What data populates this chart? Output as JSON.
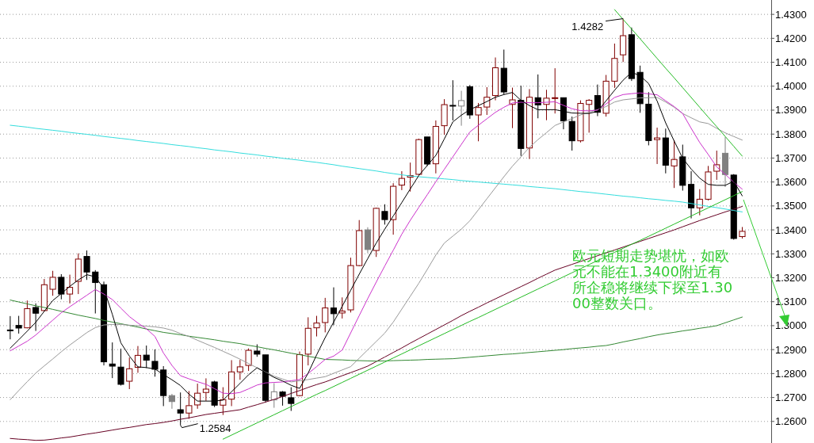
{
  "chart_data": {
    "type": "candlestick",
    "categories": [
      null,
      null,
      null,
      null,
      null,
      null,
      null,
      null,
      null,
      null,
      null,
      null,
      null,
      null,
      null,
      null,
      null,
      null,
      null,
      null,
      null,
      null,
      null,
      null,
      null,
      null,
      null,
      null,
      null,
      null,
      null,
      null,
      null,
      null,
      null,
      null,
      null,
      null,
      null,
      null,
      null,
      null,
      null,
      null,
      null,
      null,
      null,
      null,
      null,
      null,
      null,
      null,
      null,
      null,
      null,
      null,
      null,
      null,
      null,
      null,
      null,
      null,
      null,
      null,
      null,
      null,
      null,
      null,
      null,
      null,
      null,
      null,
      null,
      null,
      null,
      null,
      null,
      null,
      null,
      null,
      null,
      null,
      null,
      null,
      null,
      null,
      null
    ],
    "ohlc": [
      [
        1.2982,
        1.304,
        1.2943,
        1.2982
      ],
      [
        1.3001,
        1.3041,
        1.2967,
        1.299
      ],
      [
        1.2991,
        1.3105,
        1.2989,
        1.3071
      ],
      [
        1.3076,
        1.3093,
        1.2978,
        1.3052
      ],
      [
        1.3063,
        1.3195,
        1.306,
        1.3171
      ],
      [
        1.3152,
        1.3229,
        1.3125,
        1.3202
      ],
      [
        1.3202,
        1.3215,
        1.311,
        1.3132
      ],
      [
        1.3132,
        1.3213,
        1.3093,
        1.316
      ],
      [
        1.3185,
        1.3302,
        1.3132,
        1.3278
      ],
      [
        1.3289,
        1.3314,
        1.3191,
        1.3224
      ],
      [
        1.3224,
        1.3232,
        1.3051,
        1.318
      ],
      [
        1.3171,
        1.3184,
        1.2834,
        1.2849
      ],
      [
        1.284,
        1.293,
        1.2781,
        1.2831
      ],
      [
        1.2827,
        1.2904,
        1.275,
        1.2755
      ],
      [
        1.2768,
        1.2867,
        1.2735,
        1.282
      ],
      [
        1.2826,
        1.2915,
        1.2803,
        1.2876
      ],
      [
        1.2877,
        1.2917,
        1.2823,
        1.2856
      ],
      [
        1.2851,
        1.2901,
        1.2787,
        1.2818
      ],
      [
        1.2815,
        1.2831,
        1.2664,
        1.2708
      ],
      [
        1.2708,
        1.2715,
        1.2653,
        1.2683
      ],
      [
        1.2649,
        1.2721,
        1.2584,
        1.2635
      ],
      [
        1.2635,
        1.2727,
        1.2611,
        1.2666
      ],
      [
        1.2669,
        1.2758,
        1.2653,
        1.2718
      ],
      [
        1.2721,
        1.278,
        1.2686,
        1.2735
      ],
      [
        1.2765,
        1.277,
        1.266,
        1.2668
      ],
      [
        1.2668,
        1.2743,
        1.2627,
        1.2691
      ],
      [
        1.2693,
        1.2856,
        1.2664,
        1.2807
      ],
      [
        1.2807,
        1.2857,
        1.2774,
        1.2828
      ],
      [
        1.2834,
        1.2905,
        1.2811,
        1.2897
      ],
      [
        1.2894,
        1.2922,
        1.287,
        1.2881
      ],
      [
        1.2878,
        1.2878,
        1.2679,
        1.2688
      ],
      [
        1.269,
        1.276,
        1.2657,
        1.2724
      ],
      [
        1.2723,
        1.2727,
        1.2666,
        1.2705
      ],
      [
        1.2699,
        1.2743,
        1.2644,
        1.2675
      ],
      [
        1.2708,
        1.2892,
        1.2705,
        1.2879
      ],
      [
        1.2881,
        1.3035,
        1.2834,
        1.2989
      ],
      [
        1.2991,
        1.3041,
        1.2955,
        1.3011
      ],
      [
        1.3013,
        1.3116,
        1.2972,
        1.3074
      ],
      [
        1.3074,
        1.316,
        1.3002,
        1.305
      ],
      [
        1.3053,
        1.3118,
        1.303,
        1.3061
      ],
      [
        1.3066,
        1.3284,
        1.3055,
        1.3251
      ],
      [
        1.3251,
        1.3441,
        1.3248,
        1.3397
      ],
      [
        1.34,
        1.3411,
        1.3303,
        1.3318
      ],
      [
        1.3314,
        1.3493,
        1.3287,
        1.349
      ],
      [
        1.3477,
        1.3507,
        1.3422,
        1.3443
      ],
      [
        1.3443,
        1.3595,
        1.338,
        1.3582
      ],
      [
        1.3587,
        1.3645,
        1.3566,
        1.3615
      ],
      [
        1.362,
        1.3681,
        1.356,
        1.3627
      ],
      [
        1.3632,
        1.3781,
        1.3628,
        1.3777
      ],
      [
        1.3788,
        1.3788,
        1.3667,
        1.3675
      ],
      [
        1.3676,
        1.3857,
        1.3636,
        1.3832
      ],
      [
        1.3835,
        1.3946,
        1.3797,
        1.3923
      ],
      [
        1.392,
        1.4025,
        1.3857,
        1.392
      ],
      [
        1.3917,
        1.3981,
        1.3835,
        1.394
      ],
      [
        1.3998,
        1.4005,
        1.3864,
        1.388
      ],
      [
        1.388,
        1.393,
        1.377,
        1.3911
      ],
      [
        1.3913,
        1.3996,
        1.388,
        1.3954
      ],
      [
        1.3961,
        1.412,
        1.3941,
        1.4077
      ],
      [
        1.4075,
        1.4153,
        1.3965,
        1.3976
      ],
      [
        1.3924,
        1.3994,
        1.3825,
        1.3943
      ],
      [
        1.3941,
        1.4002,
        1.3709,
        1.374
      ],
      [
        1.3742,
        1.3988,
        1.3696,
        1.3954
      ],
      [
        1.3952,
        1.4049,
        1.3866,
        1.3922
      ],
      [
        1.3924,
        1.3985,
        1.3858,
        1.395
      ],
      [
        1.3952,
        1.4075,
        1.3886,
        1.3952
      ],
      [
        1.3952,
        1.3952,
        1.382,
        1.3855
      ],
      [
        1.3853,
        1.3873,
        1.3731,
        1.3772
      ],
      [
        1.3772,
        1.3941,
        1.3765,
        1.3928
      ],
      [
        1.3924,
        1.3946,
        1.3806,
        1.3941
      ],
      [
        1.3961,
        1.4007,
        1.3875,
        1.3891
      ],
      [
        1.3887,
        1.4047,
        1.3873,
        1.4021
      ],
      [
        1.4021,
        1.4178,
        1.3993,
        1.4116
      ],
      [
        1.4131,
        1.4282,
        1.4101,
        1.4211
      ],
      [
        1.4215,
        1.4245,
        1.4022,
        1.4032
      ],
      [
        1.4058,
        1.4086,
        1.3889,
        1.3927
      ],
      [
        1.3925,
        1.3975,
        1.3753,
        1.3773
      ],
      [
        1.3777,
        1.3827,
        1.3675,
        1.3784
      ],
      [
        1.3784,
        1.3823,
        1.3636,
        1.367
      ],
      [
        1.3667,
        1.3775,
        1.3575,
        1.3694
      ],
      [
        1.3705,
        1.3756,
        1.3564,
        1.3586
      ],
      [
        1.359,
        1.3645,
        1.3448,
        1.3492
      ],
      [
        1.3492,
        1.357,
        1.3461,
        1.3528
      ],
      [
        1.3528,
        1.3667,
        1.3523,
        1.3642
      ],
      [
        1.3645,
        1.3731,
        1.3609,
        1.3672
      ],
      [
        1.372,
        1.3788,
        1.3579,
        1.3631
      ],
      [
        1.3629,
        1.3633,
        1.3359,
        1.3364
      ],
      [
        1.3372,
        1.3412,
        1.3364,
        1.3394
      ]
    ],
    "colors": [
      "#000000",
      "#000000",
      "#800000",
      "#000000",
      "#800000",
      "#800000",
      "#000000",
      "#800000",
      "#800000",
      "#000000",
      "#000000",
      "#000000",
      "#000000",
      "#000000",
      "#800000",
      "#800000",
      "#000000",
      "#000000",
      "#000000",
      "#808080",
      "#000000",
      "#800000",
      "#800000",
      "#800000",
      "#000000",
      "#800000",
      "#800000",
      "#800000",
      "#800000",
      "#000000",
      "#000000",
      "#808080",
      "#000000",
      "#000000",
      "#800000",
      "#800000",
      "#800000",
      "#800000",
      "#000000",
      "#800000",
      "#800000",
      "#800000",
      "#808080",
      "#800000",
      "#000000",
      "#800000",
      "#800000",
      "#800000",
      "#800000",
      "#000000",
      "#800000",
      "#800000",
      "#000000",
      "#808080",
      "#000000",
      "#800000",
      "#800000",
      "#800000",
      "#000000",
      "#800000",
      "#000000",
      "#800000",
      "#000000",
      "#800000",
      "#800000",
      "#000000",
      "#000000",
      "#800000",
      "#800000",
      "#000000",
      "#800000",
      "#800000",
      "#800000",
      "#000000",
      "#000000",
      "#000000",
      "#800000",
      "#000000",
      "#800000",
      "#000000",
      "#000000",
      "#800000",
      "#800000",
      "#800000",
      "#808080",
      "#000000",
      "#800000"
    ],
    "series": [
      {
        "type": "line",
        "color": "#660022",
        "values": [
          1.2529,
          1.2526,
          1.2524,
          1.2521,
          1.2522,
          1.2526,
          1.2531,
          1.2535,
          1.2541,
          1.2547,
          1.2552,
          1.2558,
          1.2564,
          1.257,
          1.2575,
          1.2581,
          1.2587,
          1.2591,
          1.2596,
          1.2602,
          1.2609,
          1.2615,
          1.2622,
          1.2629,
          1.2634,
          1.2639,
          1.2644,
          1.2649,
          1.266,
          1.267,
          1.2681,
          1.2692,
          1.2704,
          1.2717,
          1.2729,
          1.2742,
          1.2754,
          1.2765,
          1.2778,
          1.2791,
          1.2804,
          1.2817,
          1.2831,
          1.285,
          1.2869,
          1.2888,
          1.2907,
          1.2927,
          1.2946,
          1.2965,
          1.2984,
          1.3003,
          1.3022,
          1.3042,
          1.306,
          1.3077,
          1.3095,
          1.3112,
          1.3129,
          1.3146,
          1.3163,
          1.318,
          1.3198,
          1.3215,
          1.3232,
          1.3244,
          1.3256,
          1.3268,
          1.328,
          1.3292,
          1.3304,
          1.3316,
          1.3328,
          1.334,
          1.3352,
          1.3364,
          1.3376,
          1.3388,
          1.34,
          1.3413,
          1.3426,
          1.3439,
          1.3451,
          1.3463,
          1.3475,
          1.3486,
          1.3498
        ]
      },
      {
        "type": "line",
        "color": "#338833",
        "values": [
          1.3107,
          1.3099,
          1.3091,
          1.3083,
          1.3076,
          1.3068,
          1.306,
          1.3052,
          1.3044,
          1.3037,
          1.303,
          1.3022,
          1.3015,
          1.3008,
          1.3001,
          1.2994,
          1.2986,
          1.2979,
          1.2972,
          1.2967,
          1.2962,
          1.2956,
          1.2951,
          1.2946,
          1.2941,
          1.2935,
          1.293,
          1.2925,
          1.2918,
          1.2912,
          1.2905,
          1.2899,
          1.2892,
          1.2885,
          1.2879,
          1.2872,
          1.2866,
          1.2859,
          1.2858,
          1.2857,
          1.2855,
          1.2854,
          1.2853,
          1.2852,
          1.2853,
          1.2854,
          1.2855,
          1.2856,
          1.2857,
          1.2859,
          1.286,
          1.2861,
          1.2862,
          1.2865,
          1.2868,
          1.2871,
          1.2874,
          1.2877,
          1.288,
          1.2882,
          1.2885,
          1.2888,
          1.2891,
          1.2894,
          1.2897,
          1.29,
          1.2904,
          1.2907,
          1.291,
          1.2914,
          1.2917,
          1.2924,
          1.2932,
          1.2939,
          1.2946,
          1.2954,
          1.2961,
          1.2967,
          1.2972,
          1.2978,
          1.2983,
          1.2989,
          1.2994,
          1.3,
          1.3012,
          1.3024,
          1.3036
        ]
      },
      {
        "type": "line",
        "color": "#33dddd",
        "values": [
          1.3837,
          1.3833,
          1.3829,
          1.3824,
          1.382,
          1.3816,
          1.3812,
          1.3807,
          1.3803,
          1.3799,
          1.3795,
          1.379,
          1.3786,
          1.3782,
          1.3778,
          1.3773,
          1.3769,
          1.3765,
          1.3761,
          1.3756,
          1.3752,
          1.3748,
          1.3743,
          1.3739,
          1.3734,
          1.373,
          1.3726,
          1.3721,
          1.3717,
          1.3713,
          1.3708,
          1.3704,
          1.3699,
          1.3695,
          1.3691,
          1.3686,
          1.3682,
          1.3677,
          1.3672,
          1.3666,
          1.3661,
          1.3656,
          1.3651,
          1.3646,
          1.364,
          1.3635,
          1.363,
          1.3625,
          1.3622,
          1.3619,
          1.3616,
          1.3613,
          1.361,
          1.3606,
          1.3603,
          1.36,
          1.3597,
          1.3594,
          1.3591,
          1.3588,
          1.3585,
          1.3581,
          1.3578,
          1.3575,
          1.3572,
          1.3568,
          1.3564,
          1.356,
          1.3557,
          1.3553,
          1.3549,
          1.3545,
          1.3541,
          1.3538,
          1.3534,
          1.353,
          1.3527,
          1.3523,
          1.352,
          1.3516,
          1.351,
          1.3504,
          1.3498,
          1.3493,
          1.3487,
          1.3481,
          1.3475
        ]
      },
      {
        "type": "line",
        "color": "#999999",
        "values": [
          1.2691,
          1.2729,
          1.2766,
          1.2802,
          1.2832,
          1.2861,
          1.2891,
          1.2919,
          1.2945,
          1.2971,
          1.2992,
          1.3003,
          1.3005,
          1.3005,
          1.3002,
          1.3,
          1.2998,
          1.2995,
          1.299,
          1.2981,
          1.2967,
          1.2955,
          1.2939,
          1.2924,
          1.2909,
          1.2893,
          1.2877,
          1.286,
          1.2842,
          1.2824,
          1.2806,
          1.2789,
          1.2777,
          1.2765,
          1.277,
          1.2775,
          1.2781,
          1.2787,
          1.2801,
          1.2815,
          1.2829,
          1.2864,
          1.2899,
          1.2934,
          1.2969,
          1.3015,
          1.3069,
          1.3123,
          1.3177,
          1.3235,
          1.3295,
          1.3345,
          1.3374,
          1.3403,
          1.3438,
          1.3484,
          1.353,
          1.3576,
          1.3622,
          1.3666,
          1.3705,
          1.3745,
          1.3777,
          1.3806,
          1.3836,
          1.3851,
          1.3865,
          1.388,
          1.3891,
          1.3902,
          1.3915,
          1.3934,
          1.3943,
          1.3947,
          1.3951,
          1.3952,
          1.3953,
          1.3934,
          1.3912,
          1.3886,
          1.3868,
          1.3851,
          1.3844,
          1.3824,
          1.3805,
          1.379,
          1.3775
        ]
      },
      {
        "type": "line",
        "color": "#cc33cc",
        "values": [
          1.2895,
          1.2915,
          1.2935,
          1.2961,
          1.2992,
          1.3023,
          1.3054,
          1.3079,
          1.3103,
          1.3127,
          1.3151,
          1.3132,
          1.3109,
          1.3073,
          1.3038,
          1.3011,
          1.2987,
          1.2955,
          1.2886,
          1.2834,
          1.2791,
          1.2778,
          1.2766,
          1.2755,
          1.2737,
          1.2718,
          1.2716,
          1.2721,
          1.2736,
          1.2752,
          1.2761,
          1.2763,
          1.2765,
          1.277,
          1.2775,
          1.28,
          1.2829,
          1.2859,
          1.2873,
          1.2898,
          1.297,
          1.3042,
          1.3113,
          1.3182,
          1.3249,
          1.3315,
          1.3382,
          1.344,
          1.3494,
          1.3547,
          1.3601,
          1.3653,
          1.3705,
          1.3757,
          1.3809,
          1.3837,
          1.3864,
          1.3891,
          1.3912,
          1.393,
          1.3933,
          1.3931,
          1.3931,
          1.3933,
          1.3935,
          1.392,
          1.3906,
          1.3898,
          1.3897,
          1.39,
          1.3926,
          1.3953,
          1.3965,
          1.3969,
          1.3972,
          1.3968,
          1.3964,
          1.3939,
          1.3915,
          1.3886,
          1.3824,
          1.3765,
          1.3715,
          1.3663,
          1.3632,
          1.3599,
          1.357
        ]
      },
      {
        "type": "line",
        "color": "#000000",
        "values": [
          1.2906,
          1.2941,
          1.2977,
          1.3014,
          1.306,
          1.3105,
          1.3134,
          1.3164,
          1.3191,
          1.3213,
          1.3204,
          1.3155,
          1.3047,
          1.2928,
          1.2873,
          1.2828,
          1.2825,
          1.2819,
          1.2796,
          1.2774,
          1.275,
          1.2714,
          1.2685,
          1.2685,
          1.2685,
          1.2689,
          1.2724,
          1.2759,
          1.2795,
          1.2824,
          1.2804,
          1.2784,
          1.2769,
          1.2751,
          1.2738,
          1.2802,
          1.2878,
          1.295,
          1.3015,
          1.3081,
          1.3148,
          1.3215,
          1.328,
          1.3345,
          1.3403,
          1.3458,
          1.3514,
          1.3571,
          1.3627,
          1.3669,
          1.3711,
          1.378,
          1.3851,
          1.3879,
          1.3902,
          1.3919,
          1.3936,
          1.3954,
          1.3965,
          1.3974,
          1.3941,
          1.3919,
          1.3902,
          1.3902,
          1.3902,
          1.3895,
          1.3888,
          1.3887,
          1.3886,
          1.3895,
          1.3939,
          1.3983,
          1.4025,
          1.4058,
          1.4044,
          1.4011,
          1.3938,
          1.3847,
          1.3771,
          1.3699,
          1.3654,
          1.3616,
          1.359,
          1.3586,
          1.3586,
          1.3603,
          1.3542
        ]
      },
      {
        "type": "line",
        "color": "#22bb22",
        "values": [
          null,
          null,
          null,
          null,
          null,
          null,
          null,
          null,
          null,
          null,
          null,
          null,
          null,
          null,
          null,
          null,
          null,
          null,
          null,
          null,
          null,
          null,
          null,
          null,
          null,
          1.2526,
          1.2543,
          1.256,
          1.2577,
          1.2594,
          1.2611,
          1.2628,
          1.2645,
          1.2662,
          1.2679,
          1.2696,
          1.2713,
          1.2729,
          1.2746,
          1.2763,
          1.278,
          1.2797,
          1.2814,
          1.2831,
          1.2848,
          1.2865,
          1.2882,
          1.2899,
          1.2916,
          1.2933,
          1.295,
          1.2967,
          1.2984,
          1.3001,
          1.3018,
          1.3034,
          1.3051,
          1.3068,
          1.3085,
          1.3102,
          1.3119,
          1.3136,
          1.3153,
          1.317,
          1.3187,
          1.3204,
          1.3221,
          1.3238,
          1.3255,
          1.3272,
          1.3289,
          1.3306,
          1.3323,
          1.334,
          1.3356,
          1.3373,
          1.339,
          1.3407,
          1.3424,
          1.3441,
          1.3458,
          1.3475,
          1.3492,
          1.3509,
          1.3526,
          1.3543,
          1.356
        ]
      },
      {
        "type": "line",
        "color": "#22bb22",
        "values": [
          null,
          null,
          null,
          null,
          null,
          null,
          null,
          null,
          null,
          null,
          null,
          null,
          null,
          null,
          null,
          null,
          null,
          null,
          null,
          null,
          null,
          null,
          null,
          null,
          null,
          null,
          null,
          null,
          null,
          null,
          null,
          null,
          null,
          null,
          null,
          null,
          null,
          null,
          null,
          null,
          null,
          null,
          null,
          null,
          null,
          null,
          null,
          null,
          null,
          null,
          null,
          null,
          null,
          null,
          null,
          null,
          null,
          null,
          null,
          null,
          null,
          null,
          null,
          null,
          null,
          null,
          null,
          null,
          null,
          null,
          null,
          1.432,
          1.4279,
          1.4239,
          1.4198,
          1.4157,
          1.4116,
          1.4075,
          1.4035,
          1.3994,
          1.3953,
          1.3912,
          1.3871,
          1.3831,
          1.379,
          1.3749,
          1.3708
        ]
      }
    ],
    "ylim": [
      1.251,
      1.436
    ],
    "yticks": [
      {
        "value": 1.26,
        "label": "1.2600"
      },
      {
        "value": 1.27,
        "label": "1.2700"
      },
      {
        "value": 1.28,
        "label": "1.2800"
      },
      {
        "value": 1.29,
        "label": "1.2900"
      },
      {
        "value": 1.3,
        "label": "1.3000"
      },
      {
        "value": 1.31,
        "label": "1.3100"
      },
      {
        "value": 1.32,
        "label": "1.3200"
      },
      {
        "value": 1.33,
        "label": "1.3300"
      },
      {
        "value": 1.34,
        "label": "1.3400"
      },
      {
        "value": 1.35,
        "label": "1.3500"
      },
      {
        "value": 1.36,
        "label": "1.3600"
      },
      {
        "value": 1.37,
        "label": "1.3700"
      },
      {
        "value": 1.38,
        "label": "1.3800"
      },
      {
        "value": 1.39,
        "label": "1.3900"
      },
      {
        "value": 1.4,
        "label": "1.4000"
      },
      {
        "value": 1.41,
        "label": "1.4100"
      },
      {
        "value": 1.42,
        "label": "1.4200"
      },
      {
        "value": 1.43,
        "label": "1.4300"
      }
    ],
    "grid": "y",
    "annotations": [
      "1.4282",
      "1.2584",
      "欧元短期走势堪忧，如欧元不能在1.3400附近有所企稳将继续下探至1.3000整数关口。"
    ]
  }
}
